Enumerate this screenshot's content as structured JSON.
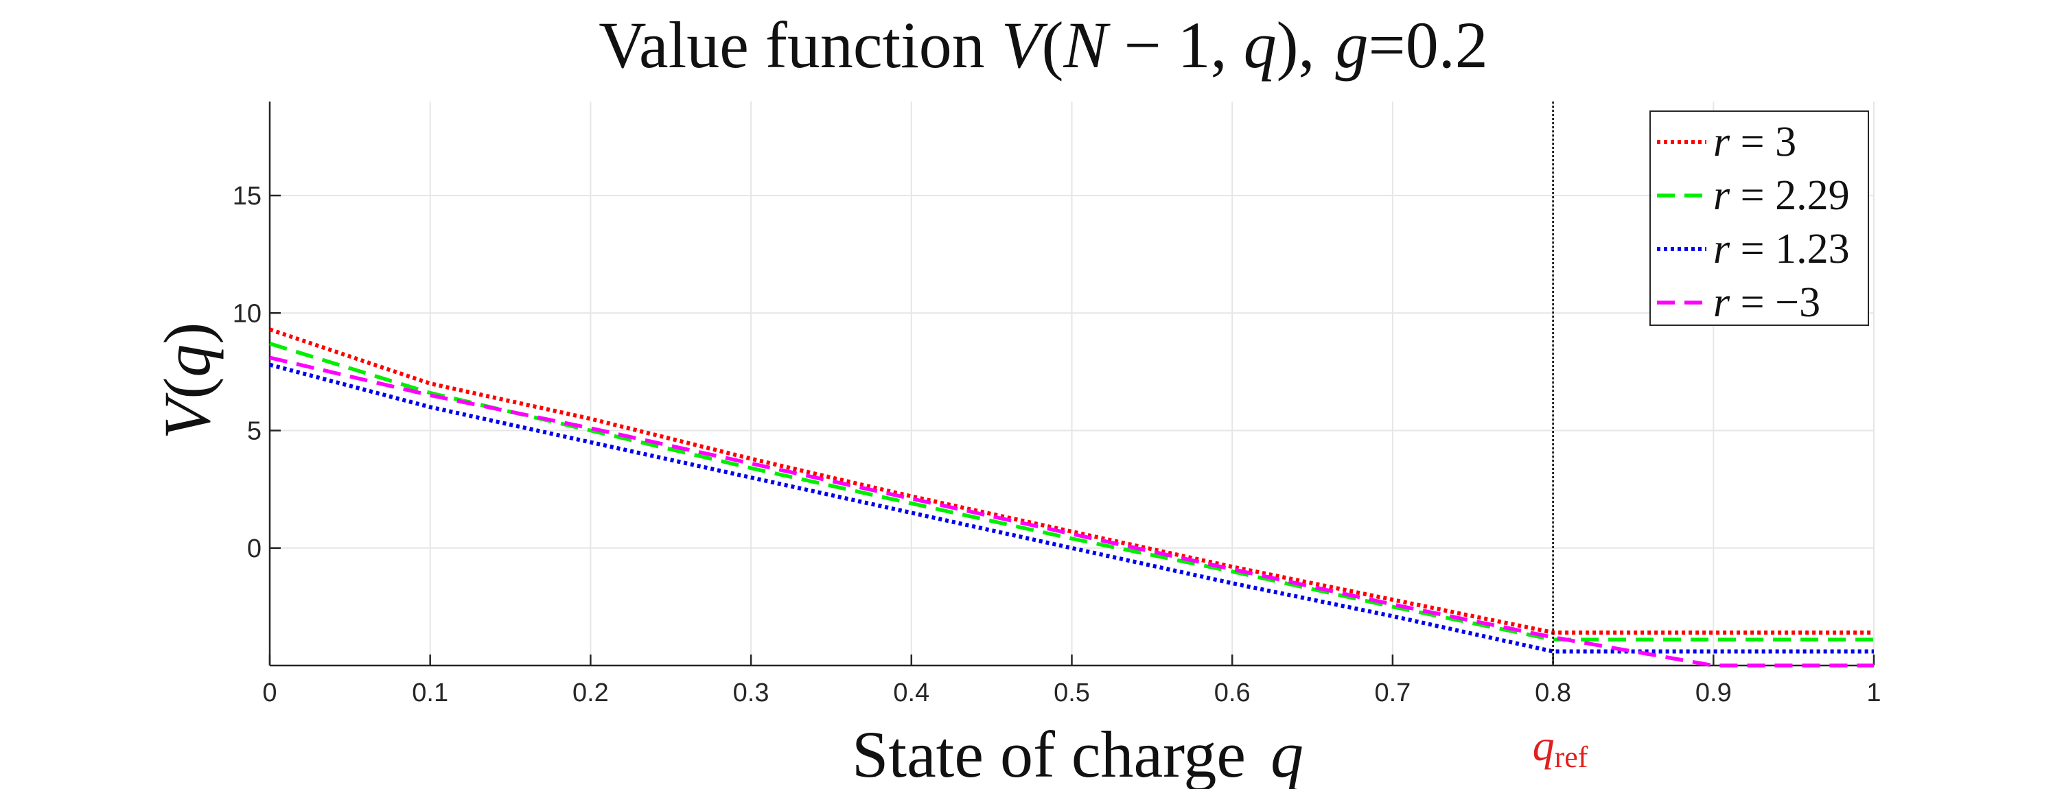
{
  "chart_data": {
    "type": "line",
    "title": {
      "prefix": "Value function ",
      "V": "V",
      "open": "(",
      "N": "N",
      "minus": " − 1, ",
      "q": "q",
      "close": "),",
      "g": "g",
      "gval": "=0.2"
    },
    "xlabel": {
      "text": "State of charge",
      "var": "q"
    },
    "ylabel": {
      "V": "V",
      "open": "(",
      "q": "q",
      "close": ")"
    },
    "xlim": [
      0,
      1
    ],
    "ylim": [
      -5,
      19
    ],
    "xticks": [
      0,
      0.1,
      0.2,
      0.3,
      0.4,
      0.5,
      0.6,
      0.7,
      0.8,
      0.9,
      1
    ],
    "xtick_labels": [
      "0",
      "0.1",
      "0.2",
      "0.3",
      "0.4",
      "0.5",
      "0.6",
      "0.7",
      "0.8",
      "0.9",
      "1"
    ],
    "yticks": [
      0,
      5,
      10,
      15
    ],
    "ytick_labels": [
      "0",
      "5",
      "10",
      "15"
    ],
    "grid": true,
    "legend_position": "top-right",
    "vline": {
      "x": 0.8,
      "label_main": "q",
      "label_sub": "ref",
      "color": "#e0201f"
    },
    "series": [
      {
        "name": "r = 3",
        "r": "3",
        "color": "#ff0000",
        "style": "dotted",
        "x": [
          0,
          0.1,
          0.2,
          0.3,
          0.4,
          0.5,
          0.6,
          0.7,
          0.8,
          0.85,
          0.9,
          1
        ],
        "y": [
          9.3,
          7.0,
          5.5,
          3.8,
          2.2,
          0.7,
          -0.8,
          -2.2,
          -3.6,
          -3.6,
          -3.6,
          -3.6
        ]
      },
      {
        "name": "r = 2.29",
        "r": "2.29",
        "color": "#00ee00",
        "style": "dashed",
        "x": [
          0,
          0.1,
          0.2,
          0.3,
          0.4,
          0.5,
          0.6,
          0.7,
          0.8,
          0.85,
          0.9,
          1
        ],
        "y": [
          8.7,
          6.6,
          5.0,
          3.4,
          1.9,
          0.4,
          -1.0,
          -2.5,
          -3.9,
          -3.9,
          -3.9,
          -3.9
        ]
      },
      {
        "name": "r = 1.23",
        "r": "1.23",
        "color": "#0000ee",
        "style": "dotted",
        "x": [
          0,
          0.1,
          0.2,
          0.3,
          0.4,
          0.5,
          0.6,
          0.7,
          0.8,
          0.85,
          0.9,
          1
        ],
        "y": [
          7.8,
          6.0,
          4.5,
          3.0,
          1.5,
          0.0,
          -1.5,
          -2.9,
          -4.4,
          -4.4,
          -4.4,
          -4.4
        ]
      },
      {
        "name": "r = −3",
        "r": "−3",
        "color": "#ff00ff",
        "style": "dashed",
        "x": [
          0,
          0.1,
          0.2,
          0.3,
          0.4,
          0.5,
          0.6,
          0.7,
          0.8,
          0.85,
          0.9,
          1
        ],
        "y": [
          8.1,
          6.5,
          5.1,
          3.6,
          2.1,
          0.6,
          -0.9,
          -2.4,
          -3.8,
          -4.4,
          -5.0,
          -5.0
        ]
      }
    ]
  }
}
